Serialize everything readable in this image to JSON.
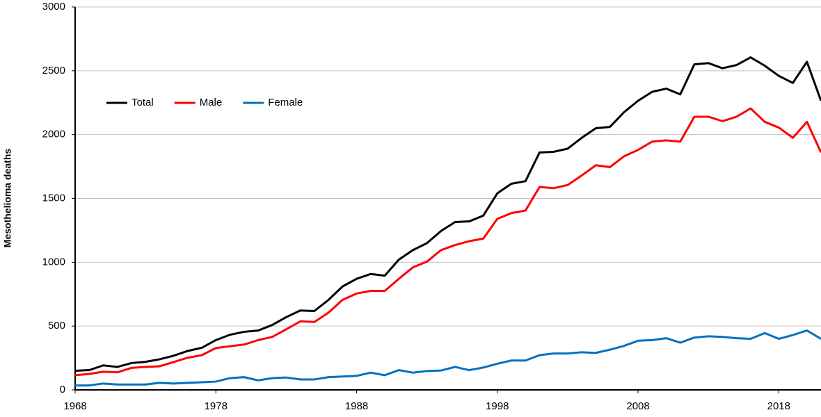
{
  "chart_data": {
    "type": "line",
    "y_label": "Mesothelioma deaths",
    "x": [
      1968,
      1969,
      1970,
      1971,
      1972,
      1973,
      1974,
      1975,
      1976,
      1977,
      1978,
      1979,
      1980,
      1981,
      1982,
      1983,
      1984,
      1985,
      1986,
      1987,
      1988,
      1989,
      1990,
      1991,
      1992,
      1993,
      1994,
      1995,
      1996,
      1997,
      1998,
      1999,
      2000,
      2001,
      2002,
      2003,
      2004,
      2005,
      2006,
      2007,
      2008,
      2009,
      2010,
      2011,
      2012,
      2013,
      2014,
      2015,
      2016,
      2017,
      2018,
      2019,
      2020,
      2021
    ],
    "series": [
      {
        "name": "Total",
        "color": "#000000",
        "values": [
          150,
          155,
          192,
          180,
          210,
          220,
          240,
          268,
          305,
          330,
          390,
          432,
          455,
          465,
          508,
          570,
          622,
          618,
          705,
          810,
          870,
          908,
          895,
          1020,
          1095,
          1150,
          1245,
          1315,
          1320,
          1365,
          1540,
          1615,
          1635,
          1860,
          1865,
          1890,
          1975,
          2050,
          2060,
          2175,
          2265,
          2335,
          2360,
          2315,
          2550,
          2560,
          2520,
          2545,
          2605,
          2540,
          2460,
          2405,
          2570,
          2265
        ]
      },
      {
        "name": "Male",
        "color": "#ff0000",
        "values": [
          115,
          125,
          142,
          138,
          172,
          180,
          185,
          218,
          252,
          272,
          328,
          342,
          355,
          390,
          415,
          475,
          537,
          532,
          605,
          705,
          755,
          775,
          775,
          870,
          960,
          1005,
          1095,
          1135,
          1165,
          1185,
          1340,
          1385,
          1405,
          1590,
          1580,
          1605,
          1680,
          1760,
          1745,
          1830,
          1880,
          1945,
          1955,
          1945,
          2140,
          2140,
          2105,
          2140,
          2205,
          2100,
          2055,
          1975,
          2100,
          1860
        ]
      },
      {
        "name": "Female",
        "color": "#0070c0",
        "values": [
          35,
          35,
          50,
          42,
          42,
          42,
          55,
          50,
          55,
          60,
          65,
          92,
          100,
          75,
          92,
          97,
          82,
          82,
          100,
          105,
          110,
          135,
          115,
          155,
          135,
          148,
          152,
          180,
          155,
          175,
          205,
          230,
          230,
          272,
          285,
          285,
          295,
          290,
          315,
          345,
          385,
          390,
          405,
          370,
          410,
          420,
          415,
          405,
          400,
          445,
          400,
          430,
          465,
          400
        ]
      }
    ],
    "xlim": [
      1968,
      2021
    ],
    "xticks": [
      1968,
      1978,
      1988,
      1998,
      2008,
      2018
    ],
    "ylim": [
      0,
      3000
    ],
    "yticks": [
      0,
      500,
      1000,
      1500,
      2000,
      2500,
      3000
    ],
    "grid": true,
    "legend": "top-left"
  }
}
